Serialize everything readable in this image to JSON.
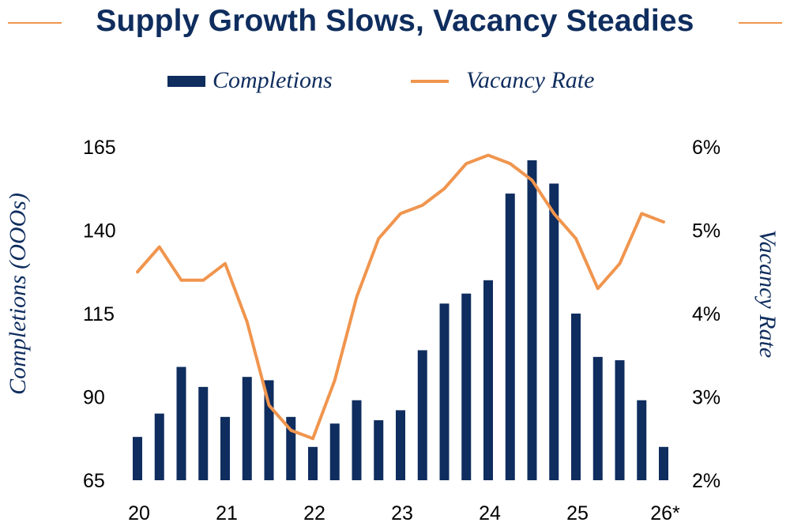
{
  "chart_data": {
    "type": "bar",
    "title": "Supply Growth Slows, Vacancy Steadies",
    "legend": {
      "placement": "top-center",
      "entries": [
        {
          "name": "Completions",
          "kind": "bar"
        },
        {
          "name": "Vacancy Rate",
          "kind": "line"
        }
      ]
    },
    "x_tick_labels": [
      "20",
      "21",
      "22",
      "23",
      "24",
      "25",
      "26*"
    ],
    "xlabel": "",
    "ylabel_left": "Completions (OOOs)",
    "ylabel_right": "Vacancy Rate",
    "ylim_left": [
      65,
      165
    ],
    "ylim_right": [
      2,
      6
    ],
    "y_ticks_left": [
      65,
      90,
      115,
      140,
      165
    ],
    "y_ticks_right": [
      "2%",
      "3%",
      "4%",
      "5%",
      "6%"
    ],
    "y_ticks_right_values": [
      2,
      3,
      4,
      5,
      6
    ],
    "grid": false,
    "x": [
      "20Q1",
      "20Q2",
      "20Q3",
      "20Q4",
      "21Q1",
      "21Q2",
      "21Q3",
      "21Q4",
      "22Q1",
      "22Q2",
      "22Q3",
      "22Q4",
      "23Q1",
      "23Q2",
      "23Q3",
      "23Q4",
      "24Q1",
      "24Q2",
      "24Q3",
      "24Q4",
      "25Q1",
      "25Q2",
      "25Q3",
      "25Q4",
      "26Q1"
    ],
    "series": [
      {
        "name": "Completions",
        "type": "bar",
        "axis": "left",
        "values": [
          78,
          85,
          99,
          93,
          84,
          96,
          95,
          84,
          75,
          82,
          89,
          83,
          86,
          104,
          118,
          121,
          125,
          151,
          161,
          154,
          115,
          102,
          101,
          89,
          75
        ]
      },
      {
        "name": "Vacancy Rate",
        "type": "line",
        "axis": "right",
        "values": [
          4.5,
          4.8,
          4.4,
          4.4,
          4.6,
          3.9,
          2.9,
          2.6,
          2.5,
          3.2,
          4.2,
          4.9,
          5.2,
          5.3,
          5.5,
          5.8,
          5.9,
          5.8,
          5.6,
          5.2,
          4.9,
          4.3,
          4.6,
          5.2,
          5.1
        ]
      }
    ]
  },
  "colors": {
    "bar": "#0F2D5E",
    "line": "#F0954E",
    "text": "#0F2D5E",
    "tick_text": "#000000"
  }
}
